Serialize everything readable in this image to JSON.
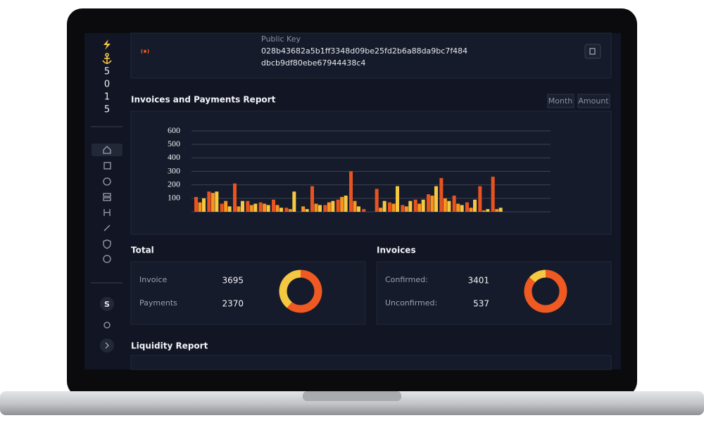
{
  "sidebar": {
    "logo_digits": [
      "5",
      "0",
      "1",
      "5"
    ],
    "avatar": "S"
  },
  "public_key": {
    "label": "Public Key",
    "line1": "028b43682a5b1ff3348d09be25fd2b6a88da9bc7f484",
    "line2": "dbcb9df80ebe67944438c4"
  },
  "report": {
    "title": "Invoices and Payments Report",
    "buttons": [
      "Month",
      "Amount"
    ],
    "chart": {
      "type": "bar",
      "ylim": [
        0,
        600
      ],
      "yticks": [
        100,
        200,
        300,
        400,
        500,
        600
      ],
      "grid": true,
      "series": [
        {
          "color": "#e8531f",
          "values": [
            110,
            150,
            60,
            210,
            80,
            70,
            90,
            30,
            0,
            190,
            50,
            90,
            300,
            20,
            170,
            70,
            50,
            90,
            130,
            250,
            120,
            70,
            190,
            260
          ]
        },
        {
          "color": "#f7931e",
          "values": [
            70,
            140,
            80,
            40,
            50,
            60,
            50,
            20,
            40,
            60,
            70,
            110,
            80,
            0,
            30,
            60,
            40,
            60,
            120,
            100,
            60,
            30,
            10,
            20
          ]
        },
        {
          "color": "#f5c842",
          "values": [
            100,
            150,
            40,
            80,
            60,
            50,
            30,
            150,
            20,
            50,
            80,
            120,
            40,
            0,
            80,
            190,
            80,
            90,
            190,
            80,
            50,
            90,
            20,
            30
          ]
        }
      ]
    }
  },
  "total": {
    "title": "Total",
    "rows": [
      {
        "label": "Invoice",
        "value": 3695,
        "color": "#f05a22"
      },
      {
        "label": "Payments",
        "value": 2370,
        "color": "#f5c842"
      }
    ]
  },
  "invoices": {
    "title": "Invoices",
    "rows": [
      {
        "label": "Confirmed:",
        "value": 3401,
        "color": "#f05a22"
      },
      {
        "label": "Unconfirmed:",
        "value": 537,
        "color": "#f5c842"
      }
    ]
  },
  "liquidity": {
    "title": "Liquidity Report"
  }
}
